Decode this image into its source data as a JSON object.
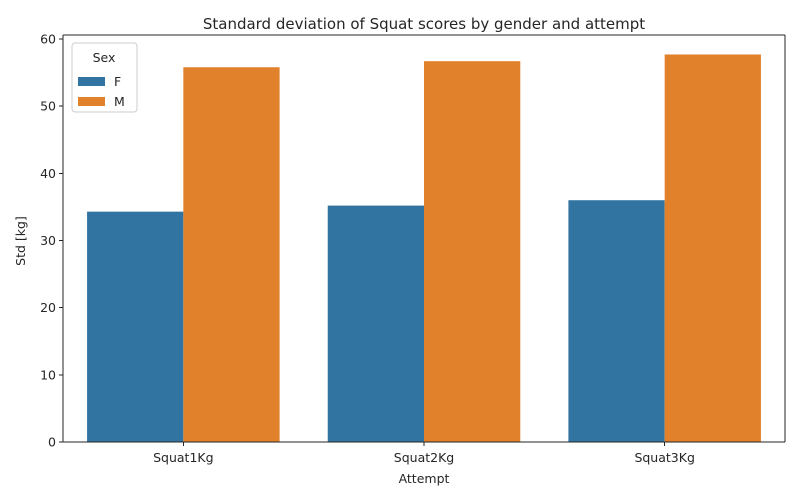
{
  "chart_data": {
    "type": "bar",
    "title": "Standard deviation of Squat scores by gender and attempt",
    "xlabel": "Attempt",
    "ylabel": "Std [kg]",
    "categories": [
      "Squat1Kg",
      "Squat2Kg",
      "Squat3Kg"
    ],
    "series": [
      {
        "name": "F",
        "values": [
          34.3,
          35.2,
          36.0
        ],
        "color": "#3274a1"
      },
      {
        "name": "M",
        "values": [
          55.8,
          56.7,
          57.7
        ],
        "color": "#e1812c"
      }
    ],
    "ylim": [
      0,
      60.6
    ],
    "yticks": [
      0,
      10,
      20,
      30,
      40,
      50,
      60
    ],
    "grid": false,
    "legend": {
      "title": "Sex",
      "placement": "top-left"
    }
  }
}
